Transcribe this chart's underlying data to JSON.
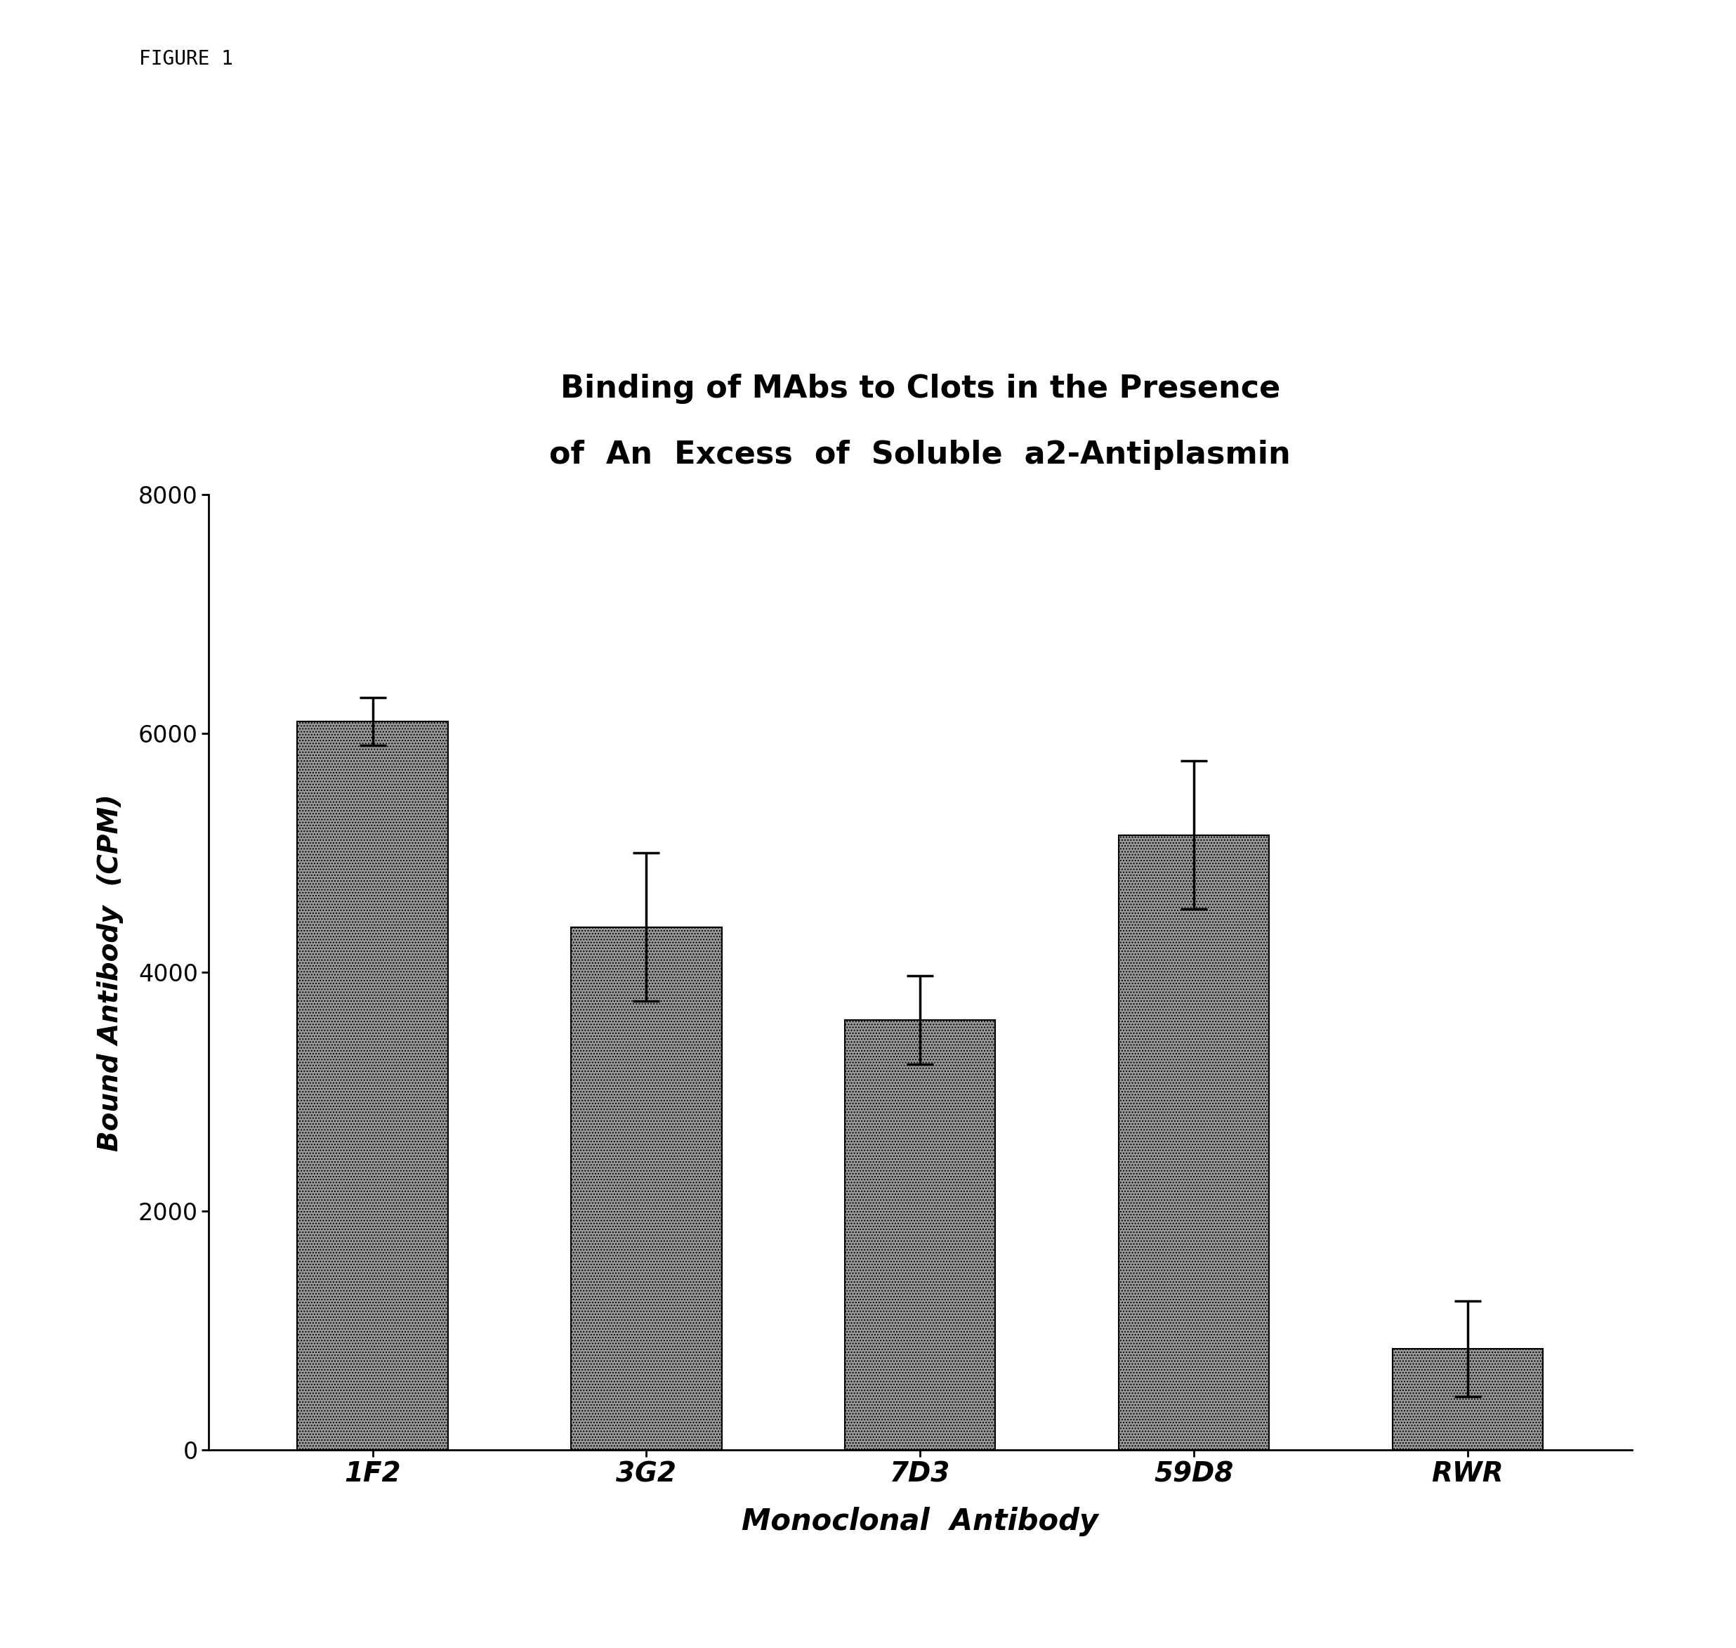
{
  "categories": [
    "1F2",
    "3G2",
    "7D3",
    "59D8",
    "RWR"
  ],
  "values": [
    6100,
    4380,
    3600,
    5150,
    850
  ],
  "errors": [
    200,
    620,
    370,
    620,
    400
  ],
  "bar_color": "#999999",
  "bar_hatch": "....",
  "title_line1": "Binding of MAbs to Clots in the Presence",
  "title_line2": "of  An  Excess  of  Soluble  a2-Antiplasmin",
  "xlabel": "Monoclonal  Antibody",
  "ylabel": "Bound Antibody  (CPM)",
  "figure_label": "FIGURE 1",
  "ylim": [
    0,
    8000
  ],
  "yticks": [
    0,
    2000,
    4000,
    6000,
    8000
  ],
  "title_fontsize": 32,
  "axis_label_fontsize": 28,
  "tick_fontsize": 24,
  "figure_label_fontsize": 20,
  "background_color": "#ffffff"
}
